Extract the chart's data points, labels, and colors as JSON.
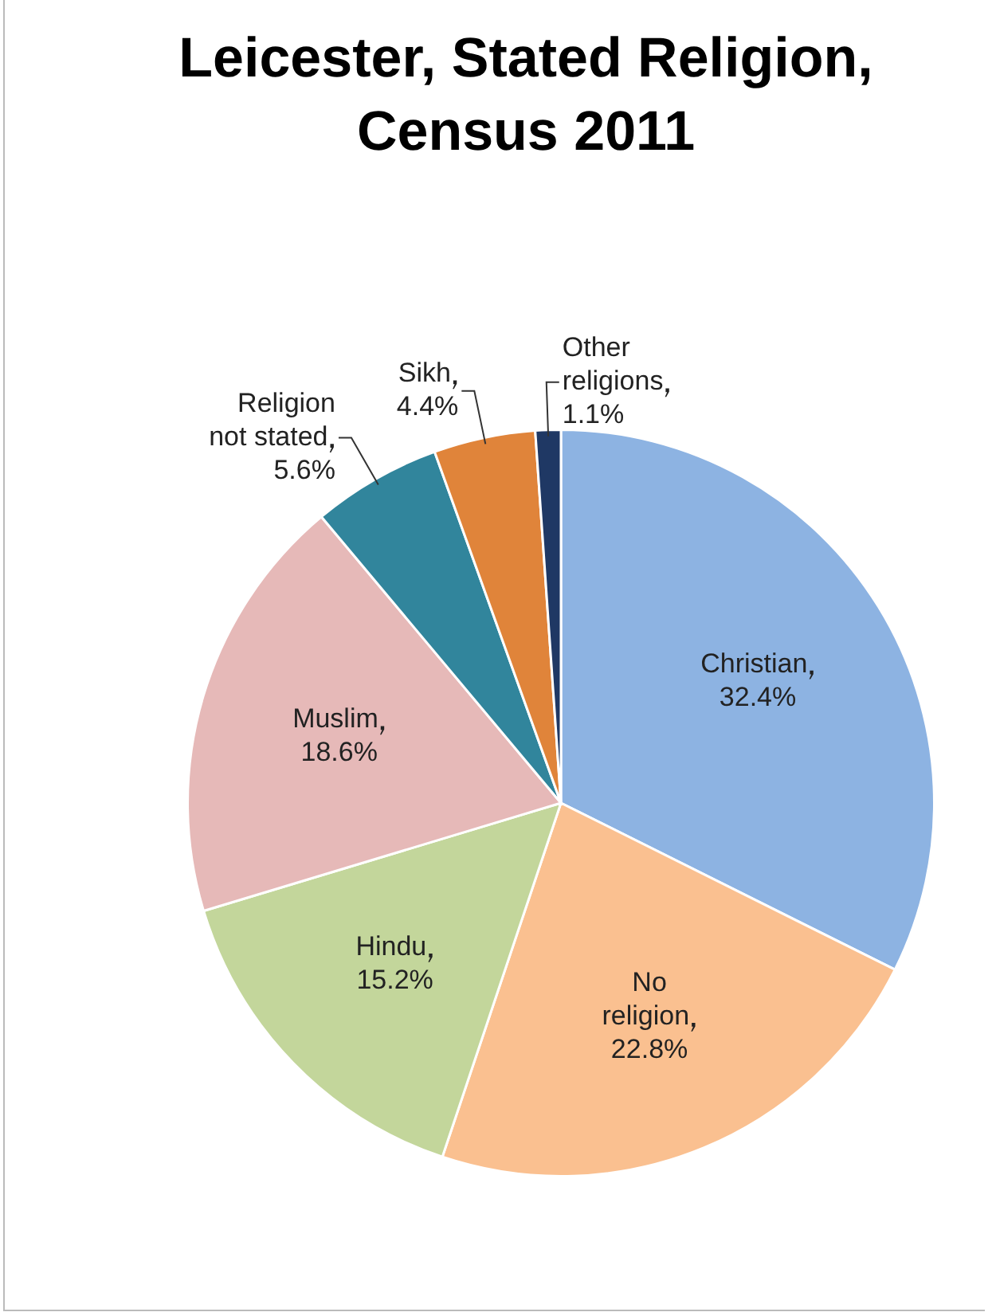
{
  "chart_data": {
    "type": "pie",
    "title": "Leicester, Stated Religion, Census 2011",
    "categories": [
      "Christian",
      "No religion",
      "Hindu",
      "Muslim",
      "Religion not stated",
      "Sikh",
      "Other religions"
    ],
    "values": [
      32.4,
      22.8,
      15.2,
      18.6,
      5.6,
      4.4,
      1.1
    ],
    "value_labels": [
      "32.4%",
      "22.8%",
      "15.2%",
      "18.6%",
      "5.6%",
      "4.4%",
      "1.1%"
    ],
    "colors": [
      "#8db3e2",
      "#fac090",
      "#c3d69b",
      "#e6b9b8",
      "#31859c",
      "#e0843a",
      "#1f3864"
    ],
    "legend": false
  }
}
